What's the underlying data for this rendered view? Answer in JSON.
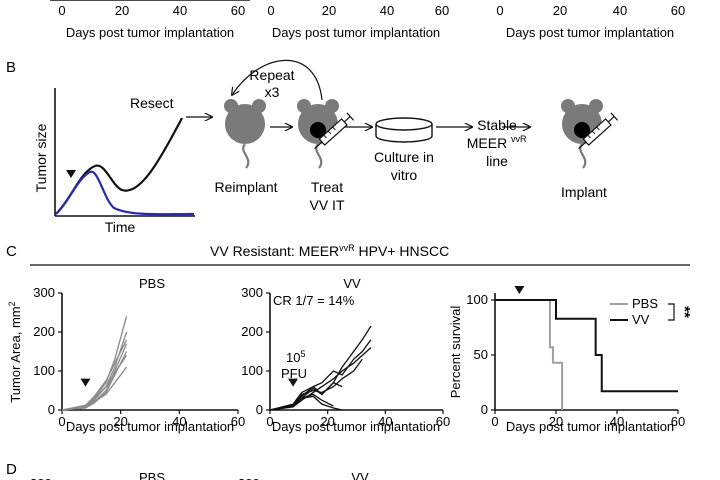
{
  "top_strip": {
    "xticks": [
      "0",
      "20",
      "40",
      "60"
    ],
    "xlabel": "Days post tumor implantation"
  },
  "panel_b": {
    "letter": "B",
    "ylabel": "Tumor size",
    "xlabel": "Time",
    "resect": "Resect",
    "repeat_line1": "Repeat",
    "repeat_line2": "x3",
    "reimplant": "Reimplant",
    "treat_line1": "Treat",
    "treat_line2": "VV IT",
    "culture_line1": "Culture in",
    "culture_line2": "vitro",
    "stable_line1": "Stable",
    "stable_line2": "MEER",
    "stable_sup": "vvR",
    "stable_line3": "line",
    "implant": "Implant"
  },
  "panel_c": {
    "letter": "C",
    "title_main": "VV Resistant: MEER",
    "title_sup": "vvR",
    "title_end": " HPV+ HNSCC",
    "ylabel": "Tumor Area, mm",
    "ylabel_sup": "2",
    "surv_ylabel": "Percent survival",
    "pbs_title": "PBS",
    "vv_title": "VV",
    "cr_text": "CR 1/7 = 14%",
    "dose_base": "10",
    "dose_exp": "5",
    "dose_unit": "PFU",
    "xlabel": "Days post tumor implantation",
    "significance": "**",
    "legend": [
      {
        "label": "PBS",
        "color": "#a0a0a0"
      },
      {
        "label": "VV",
        "color": "#111111"
      }
    ]
  },
  "panel_d": {
    "letter": "D",
    "ytick": "300",
    "pbs_title": "PBS",
    "vv_title": "VV"
  },
  "chart_data": [
    {
      "type": "line",
      "title": "PBS",
      "xlabel": "Days post tumor implantation",
      "ylabel": "Tumor Area, mm2",
      "xlim": [
        0,
        60
      ],
      "ylim": [
        0,
        300
      ],
      "xticks": [
        0,
        20,
        40,
        60
      ],
      "yticks": [
        0,
        100,
        200,
        300
      ],
      "annotation": {
        "type": "treatment-arrow",
        "x": 8
      },
      "series": [
        {
          "x": [
            0,
            8,
            11,
            15,
            18,
            22
          ],
          "y": [
            0,
            10,
            30,
            70,
            130,
            240
          ]
        },
        {
          "x": [
            0,
            8,
            11,
            15,
            18,
            22
          ],
          "y": [
            0,
            8,
            25,
            60,
            110,
            200
          ]
        },
        {
          "x": [
            0,
            8,
            11,
            15,
            18,
            22
          ],
          "y": [
            0,
            12,
            35,
            75,
            120,
            180
          ]
        },
        {
          "x": [
            0,
            8,
            11,
            15,
            18,
            22
          ],
          "y": [
            0,
            6,
            20,
            50,
            100,
            170
          ]
        },
        {
          "x": [
            0,
            8,
            11,
            15,
            18,
            22
          ],
          "y": [
            0,
            5,
            18,
            45,
            90,
            150
          ]
        },
        {
          "x": [
            0,
            8,
            11,
            15,
            18,
            22
          ],
          "y": [
            0,
            9,
            28,
            60,
            95,
            140
          ]
        },
        {
          "x": [
            0,
            8,
            11,
            15,
            18,
            22
          ],
          "y": [
            0,
            7,
            22,
            40,
            70,
            110
          ]
        }
      ]
    },
    {
      "type": "line",
      "title": "VV",
      "xlabel": "Days post tumor implantation",
      "xlim": [
        0,
        60
      ],
      "ylim": [
        0,
        300
      ],
      "xticks": [
        0,
        20,
        40,
        60
      ],
      "yticks": [
        0,
        100,
        200,
        300
      ],
      "annotation": {
        "type": "treatment-arrow",
        "x": 8
      },
      "series": [
        {
          "x": [
            0,
            8,
            11,
            15,
            18,
            22,
            25,
            29,
            32,
            35
          ],
          "y": [
            0,
            10,
            30,
            55,
            40,
            70,
            110,
            150,
            180,
            215
          ]
        },
        {
          "x": [
            0,
            8,
            11,
            15,
            18,
            22,
            25,
            29,
            32,
            35
          ],
          "y": [
            0,
            12,
            35,
            60,
            70,
            100,
            90,
            130,
            150,
            180
          ]
        },
        {
          "x": [
            0,
            8,
            11,
            15,
            18,
            22,
            25,
            29,
            32,
            35
          ],
          "y": [
            0,
            8,
            25,
            45,
            60,
            80,
            100,
            120,
            140,
            160
          ]
        },
        {
          "x": [
            0,
            8,
            11,
            15,
            18,
            22,
            25,
            29,
            32
          ],
          "y": [
            0,
            10,
            40,
            50,
            45,
            60,
            80,
            100,
            130
          ]
        },
        {
          "x": [
            0,
            8,
            11,
            15,
            18,
            22,
            25
          ],
          "y": [
            0,
            15,
            45,
            60,
            40,
            70,
            60
          ]
        },
        {
          "x": [
            0,
            8,
            11,
            15,
            18,
            22
          ],
          "y": [
            0,
            9,
            30,
            40,
            25,
            10
          ]
        },
        {
          "x": [
            0,
            8,
            11,
            15,
            18,
            22,
            25
          ],
          "y": [
            0,
            11,
            30,
            35,
            15,
            5,
            0
          ]
        }
      ]
    },
    {
      "type": "line",
      "subtype": "kaplan-meier",
      "ylabel": "Percent survival",
      "xlabel": "Days post tumor implantation",
      "xlim": [
        0,
        60
      ],
      "ylim": [
        0,
        100
      ],
      "xticks": [
        0,
        20,
        40,
        60
      ],
      "yticks": [
        0,
        50,
        100
      ],
      "annotation": {
        "type": "treatment-arrow",
        "x": 8
      },
      "series": [
        {
          "name": "PBS",
          "color": "#a0a0a0",
          "x": [
            0,
            18,
            18,
            19,
            19,
            21,
            21,
            22,
            22
          ],
          "y": [
            100,
            100,
            57,
            57,
            43,
            43,
            43,
            43,
            0
          ]
        },
        {
          "name": "VV",
          "color": "#111111",
          "x": [
            0,
            20,
            20,
            33,
            33,
            35,
            35,
            60
          ],
          "y": [
            100,
            100,
            83,
            83,
            50,
            50,
            17,
            17
          ]
        }
      ]
    }
  ]
}
